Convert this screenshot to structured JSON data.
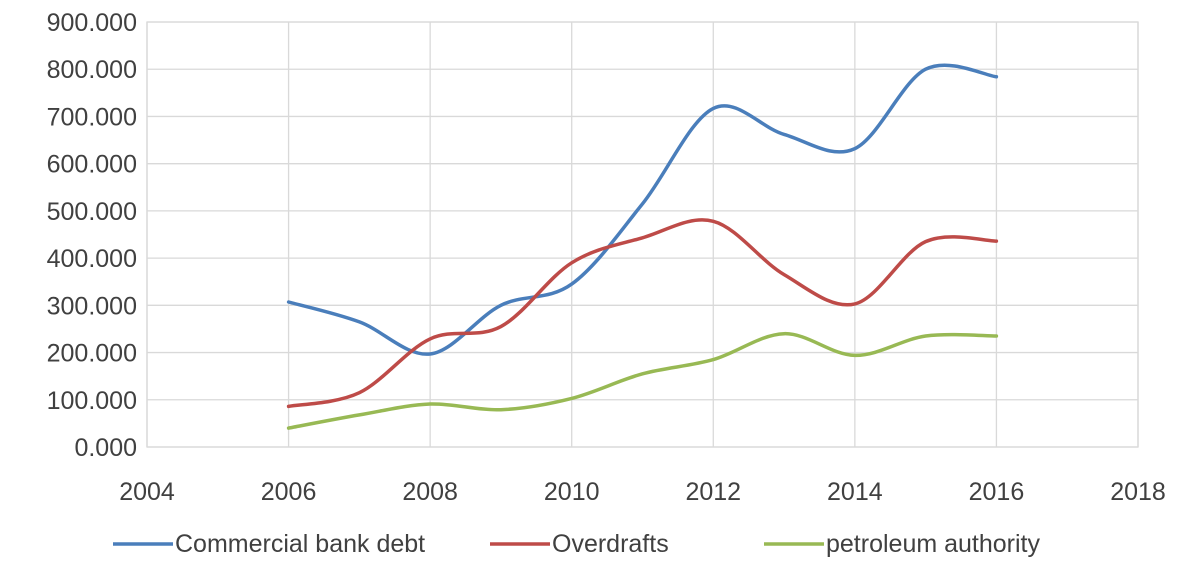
{
  "chart_data": {
    "type": "line",
    "title": "",
    "xlabel": "",
    "ylabel": "",
    "xlim": [
      2004,
      2018
    ],
    "ylim": [
      0,
      900
    ],
    "x_ticks": [
      2004,
      2006,
      2008,
      2010,
      2012,
      2014,
      2016,
      2018
    ],
    "y_ticks": [
      0,
      100,
      200,
      300,
      400,
      500,
      600,
      700,
      800,
      900
    ],
    "x_tick_labels": [
      "2004",
      "2006",
      "2008",
      "2010",
      "2012",
      "2014",
      "2016",
      "2018"
    ],
    "y_tick_labels": [
      "0.000",
      "100.000",
      "200.000",
      "300.000",
      "400.000",
      "500.000",
      "600.000",
      "700.000",
      "800.000",
      "900.000"
    ],
    "grid": true,
    "smooth": true,
    "legend_position": "bottom",
    "x": [
      2006,
      2007,
      2008,
      2009,
      2010,
      2011,
      2012,
      2013,
      2014,
      2015,
      2016
    ],
    "series": [
      {
        "name": "Commercial bank debt",
        "color": "#4a7ebb",
        "values": [
          307,
          265,
          197,
          300,
          345,
          515,
          717,
          662,
          632,
          800,
          784
        ]
      },
      {
        "name": "Overdrafts",
        "color": "#be4b48",
        "values": [
          86,
          115,
          229,
          255,
          390,
          443,
          478,
          365,
          303,
          435,
          436
        ]
      },
      {
        "name": "petroleum authority",
        "color": "#98b954",
        "values": [
          40,
          68,
          91,
          79,
          103,
          155,
          185,
          240,
          194,
          235,
          235
        ]
      }
    ]
  }
}
